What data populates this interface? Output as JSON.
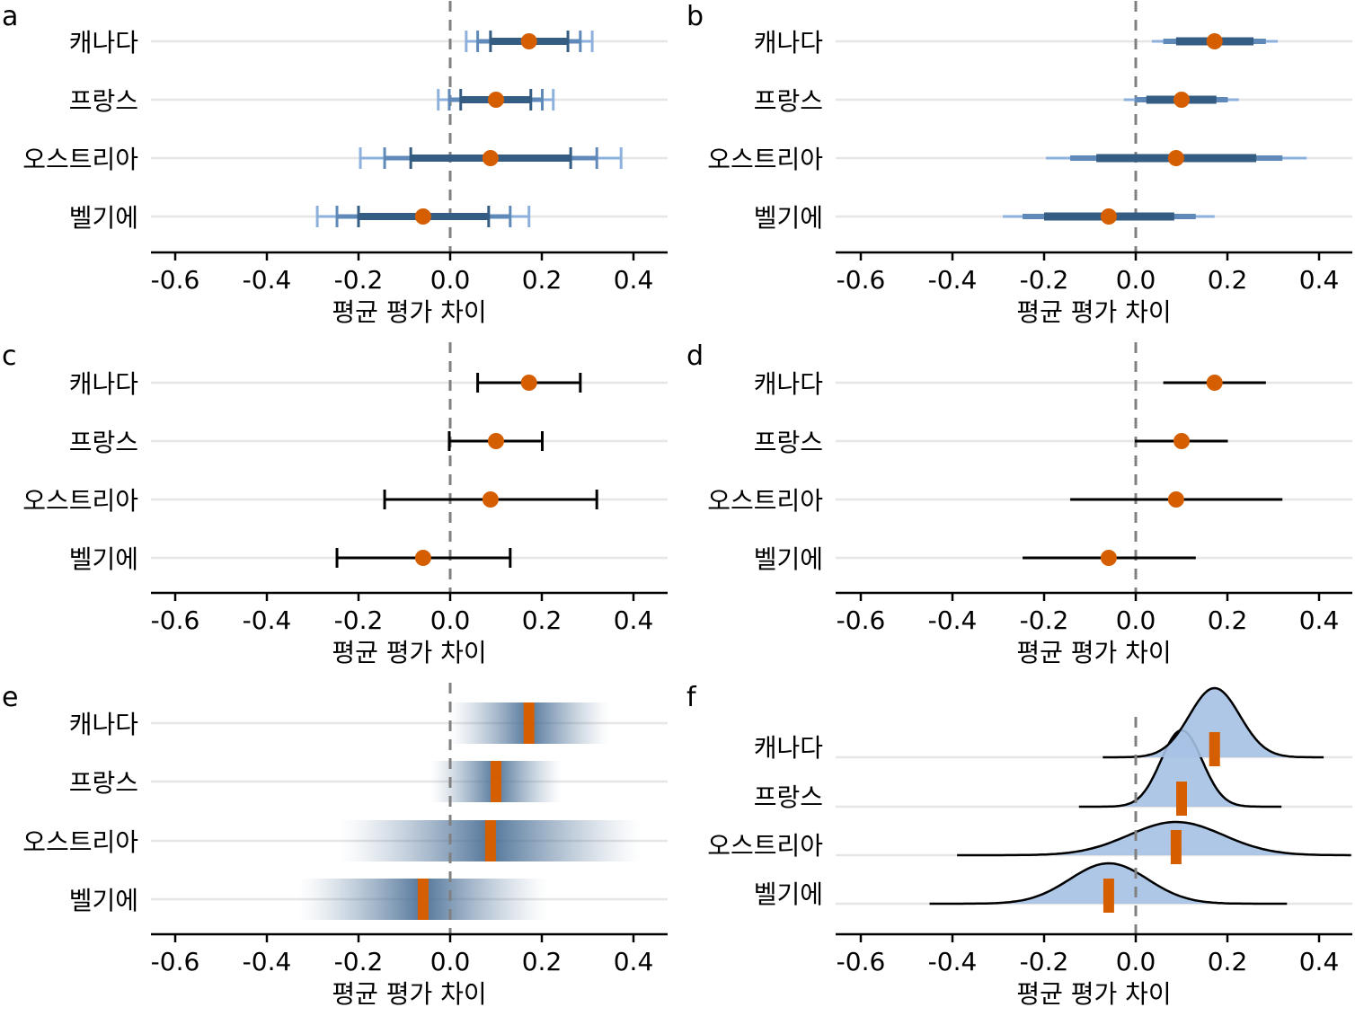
{
  "colors": {
    "point": "#d55e00",
    "interval_dark": "#355c83",
    "interval_mid": "#5f89b8",
    "interval_light": "#8db0dc",
    "density_fill": "#a6c1e3",
    "gradient_dark": "#4a6f96",
    "zero_line": "#808080",
    "row_gridline": "#e6e6e6"
  },
  "chart_data": [
    {
      "panel": "a",
      "type": "scatter",
      "style": "multiple-interval-errorbars-with-caps",
      "categories": [
        "캐나다",
        "프랑스",
        "오스트리아",
        "벨기에"
      ],
      "xlabel": "평균 평가 차이",
      "xlim": [
        -0.655,
        0.475
      ],
      "xticks": [
        -0.6,
        -0.4,
        -0.2,
        0.0,
        0.2,
        0.4
      ],
      "xtick_labels": [
        "-0.6",
        "-0.4",
        "-0.2",
        "0.0",
        "0.2",
        "0.4"
      ],
      "reference_line": 0.0,
      "grid": "horizontal rows",
      "series": [
        {
          "name": "estimate",
          "values": [
            0.172,
            0.1,
            0.088,
            -0.059
          ]
        },
        {
          "name": "ci_inner",
          "low": [
            0.088,
            0.023,
            -0.086,
            -0.2
          ],
          "high": [
            0.257,
            0.176,
            0.263,
            0.084
          ]
        },
        {
          "name": "ci_mid",
          "low": [
            0.06,
            -0.002,
            -0.143,
            -0.247
          ],
          "high": [
            0.284,
            0.201,
            0.32,
            0.131
          ]
        },
        {
          "name": "ci_outer",
          "low": [
            0.035,
            -0.026,
            -0.196,
            -0.29
          ],
          "high": [
            0.31,
            0.225,
            0.373,
            0.172
          ]
        }
      ]
    },
    {
      "panel": "b",
      "type": "scatter",
      "style": "graded-interval-bars",
      "categories": [
        "캐나다",
        "프랑스",
        "오스트리아",
        "벨기에"
      ],
      "xlabel": "평균 평가 차이",
      "xlim": [
        -0.655,
        0.475
      ],
      "xticks": [
        -0.6,
        -0.4,
        -0.2,
        0.0,
        0.2,
        0.4
      ],
      "xtick_labels": [
        "-0.6",
        "-0.4",
        "-0.2",
        "0.0",
        "0.2",
        "0.4"
      ],
      "reference_line": 0.0,
      "series": [
        {
          "name": "estimate",
          "values": [
            0.172,
            0.1,
            0.088,
            -0.059
          ]
        },
        {
          "name": "ci_inner",
          "low": [
            0.088,
            0.023,
            -0.086,
            -0.2
          ],
          "high": [
            0.257,
            0.176,
            0.263,
            0.084
          ]
        },
        {
          "name": "ci_mid",
          "low": [
            0.06,
            -0.002,
            -0.143,
            -0.247
          ],
          "high": [
            0.284,
            0.201,
            0.32,
            0.131
          ]
        },
        {
          "name": "ci_outer",
          "low": [
            0.035,
            -0.026,
            -0.196,
            -0.29
          ],
          "high": [
            0.31,
            0.225,
            0.373,
            0.172
          ]
        }
      ]
    },
    {
      "panel": "c",
      "type": "scatter",
      "style": "single-errorbar-with-caps",
      "categories": [
        "캐나다",
        "프랑스",
        "오스트리아",
        "벨기에"
      ],
      "xlabel": "평균 평가 차이",
      "xlim": [
        -0.655,
        0.475
      ],
      "xticks": [
        -0.6,
        -0.4,
        -0.2,
        0.0,
        0.2,
        0.4
      ],
      "xtick_labels": [
        "-0.6",
        "-0.4",
        "-0.2",
        "0.0",
        "0.2",
        "0.4"
      ],
      "reference_line": 0.0,
      "series": [
        {
          "name": "estimate",
          "values": [
            0.172,
            0.1,
            0.088,
            -0.059
          ]
        },
        {
          "name": "ci",
          "low": [
            0.06,
            -0.002,
            -0.143,
            -0.247
          ],
          "high": [
            0.284,
            0.201,
            0.32,
            0.131
          ]
        }
      ]
    },
    {
      "panel": "d",
      "type": "scatter",
      "style": "single-errorbar-no-caps",
      "categories": [
        "캐나다",
        "프랑스",
        "오스트리아",
        "벨기에"
      ],
      "xlabel": "평균 평가 차이",
      "xlim": [
        -0.655,
        0.475
      ],
      "xticks": [
        -0.6,
        -0.4,
        -0.2,
        0.0,
        0.2,
        0.4
      ],
      "xtick_labels": [
        "-0.6",
        "-0.4",
        "-0.2",
        "0.0",
        "0.2",
        "0.4"
      ],
      "reference_line": 0.0,
      "series": [
        {
          "name": "estimate",
          "values": [
            0.172,
            0.1,
            0.088,
            -0.059
          ]
        },
        {
          "name": "ci",
          "low": [
            0.06,
            -0.002,
            -0.143,
            -0.247
          ],
          "high": [
            0.284,
            0.201,
            0.32,
            0.131
          ]
        }
      ]
    },
    {
      "panel": "e",
      "type": "heatmap",
      "style": "gradient-interval-bands",
      "categories": [
        "캐나다",
        "프랑스",
        "오스트리아",
        "벨기에"
      ],
      "xlabel": "평균 평가 차이",
      "xlim": [
        -0.655,
        0.475
      ],
      "xticks": [
        -0.6,
        -0.4,
        -0.2,
        0.0,
        0.2,
        0.4
      ],
      "xtick_labels": [
        "-0.6",
        "-0.4",
        "-0.2",
        "0.0",
        "0.2",
        "0.4"
      ],
      "reference_line": 0.0,
      "series": [
        {
          "name": "estimate",
          "values": [
            0.172,
            0.1,
            0.088,
            -0.059
          ]
        },
        {
          "name": "sd",
          "values": [
            0.055,
            0.045,
            0.103,
            0.085
          ]
        }
      ]
    },
    {
      "panel": "f",
      "type": "area",
      "style": "ridgeline-densities",
      "categories": [
        "캐나다",
        "프랑스",
        "오스트리아",
        "벨기에"
      ],
      "xlabel": "평균 평가 차이",
      "xlim": [
        -0.655,
        0.475
      ],
      "xticks": [
        -0.6,
        -0.4,
        -0.2,
        0.0,
        0.2,
        0.4
      ],
      "xtick_labels": [
        "-0.6",
        "-0.4",
        "-0.2",
        "0.0",
        "0.2",
        "0.4"
      ],
      "reference_line": 0.0,
      "series": [
        {
          "name": "estimate",
          "values": [
            0.172,
            0.1,
            0.088,
            -0.059
          ]
        },
        {
          "name": "sd",
          "values": [
            0.055,
            0.045,
            0.103,
            0.085
          ]
        },
        {
          "name": "density_range",
          "low": [
            -0.072,
            -0.124,
            -0.39,
            -0.45
          ],
          "high": [
            0.41,
            0.318,
            0.47,
            0.33
          ]
        }
      ]
    }
  ]
}
